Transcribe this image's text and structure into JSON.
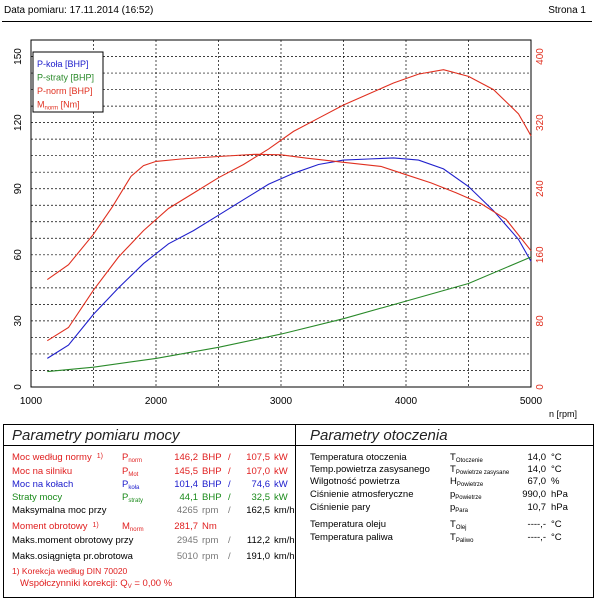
{
  "header": {
    "date_label": "Data pomiaru: 17.11.2014 (16:52)",
    "page_label": "Strona 1"
  },
  "chart_data": {
    "type": "line",
    "x_label": "n [rpm]",
    "x_ticks": [
      "1000",
      "2000",
      "3000",
      "4000",
      "5000"
    ],
    "xlim": [
      1000,
      5000
    ],
    "y_left_ticks": [
      "0",
      "30",
      "60",
      "90",
      "120",
      "150"
    ],
    "ylim_left": [
      0,
      157.5
    ],
    "y_right_ticks": [
      "0",
      "80",
      "160",
      "240",
      "320",
      "400"
    ],
    "ylim_right": [
      0,
      420
    ],
    "grid": true,
    "legend_position": "top-left",
    "legend": [
      {
        "text": "P-koła [BHP]",
        "color": "#2020cc"
      },
      {
        "text": "P-straty [BHP]",
        "color": "#2a8a2a"
      },
      {
        "text": "P-norm [BHP]",
        "color": "#e03020"
      },
      {
        "text": "M",
        "sub": "norm",
        "tail": " [Nm]",
        "color": "#e03020"
      }
    ],
    "series": [
      {
        "name": "P-koła [BHP]",
        "axis": "left",
        "color": "#2020cc",
        "x": [
          1130,
          1300,
          1500,
          1700,
          1900,
          2100,
          2300,
          2500,
          2700,
          2900,
          3100,
          3300,
          3500,
          3700,
          3900,
          4100,
          4300,
          4500,
          4700,
          4900,
          5000
        ],
        "y": [
          13,
          19,
          33,
          45,
          56,
          65,
          71,
          78,
          85,
          92,
          97,
          101,
          103,
          103.5,
          104,
          103,
          99,
          91,
          80,
          67,
          57
        ]
      },
      {
        "name": "P-straty [BHP]",
        "axis": "left",
        "color": "#2a8a2a",
        "x": [
          1130,
          1500,
          2000,
          2500,
          3000,
          3500,
          4000,
          4500,
          5000
        ],
        "y": [
          7,
          9,
          13,
          18,
          24,
          31,
          39,
          47,
          59
        ]
      },
      {
        "name": "P-norm [BHP]",
        "axis": "left",
        "color": "#e03020",
        "x": [
          1130,
          1300,
          1500,
          1700,
          1900,
          2100,
          2300,
          2500,
          2700,
          2900,
          3100,
          3300,
          3500,
          3700,
          3900,
          4100,
          4300,
          4500,
          4700,
          4900,
          5000
        ],
        "y": [
          21,
          27,
          44,
          59,
          71,
          81,
          88,
          95,
          101,
          108,
          116,
          122,
          128,
          133,
          138,
          142,
          144,
          141,
          135,
          124,
          114
        ]
      },
      {
        "name": "M",
        "axis": "right",
        "color": "#e03020",
        "x": [
          1130,
          1300,
          1500,
          1650,
          1800,
          1900,
          2000,
          2200,
          2500,
          2800,
          3000,
          3200,
          3500,
          3800,
          4000,
          4200,
          4400,
          4600,
          4800,
          5000
        ],
        "y": [
          130,
          148,
          185,
          218,
          255,
          268,
          273,
          276,
          279,
          281.7,
          281,
          277,
          272,
          267,
          257,
          247,
          235,
          222,
          203,
          165
        ]
      }
    ]
  },
  "left_table": {
    "title": "Parametry pomiaru mocy",
    "rows": [
      {
        "label": "Moc według normy",
        "note": "1)",
        "sym": "P",
        "sub": "norm",
        "v1": "146,2",
        "u1": "BHP",
        "sep": "/",
        "v2": "107,5",
        "u2": "kW",
        "cls": "red"
      },
      {
        "label": "Moc na silniku",
        "note": "",
        "sym": "P",
        "sub": "Mot",
        "v1": "145,5",
        "u1": "BHP",
        "sep": "/",
        "v2": "107,0",
        "u2": "kW",
        "cls": "red"
      },
      {
        "label": "Moc na kołach",
        "note": "",
        "sym": "P",
        "sub": "koła",
        "v1": "101,4",
        "u1": "BHP",
        "sep": "/",
        "v2": "74,6",
        "u2": "kW",
        "cls": "blue"
      },
      {
        "label": "Straty mocy",
        "note": "",
        "sym": "P",
        "sub": "straty",
        "v1": "44,1",
        "u1": "BHP",
        "sep": "/",
        "v2": "32,5",
        "u2": "kW",
        "cls": "green"
      },
      {
        "label": "Maksymalna moc przy",
        "note": "",
        "sym": "",
        "sub": "",
        "v1": "4265",
        "u1": "rpm",
        "sep": "/",
        "v2": "162,5",
        "u2": "km/h",
        "cls": ""
      },
      {
        "label": "Moment obrotowy",
        "note": "1)",
        "sym": "M",
        "sub": "norm",
        "v1": "281,7",
        "u1": "Nm",
        "sep": "",
        "v2": "",
        "u2": "",
        "cls": "red"
      },
      {
        "label": "Maks.moment obrotowy przy",
        "note": "",
        "sym": "",
        "sub": "",
        "v1": "2945",
        "u1": "rpm",
        "sep": "/",
        "v2": "112,2",
        "u2": "km/h",
        "cls": ""
      },
      {
        "label": "Maks.osiągnięta pr.obrotowa",
        "note": "",
        "sym": "",
        "sub": "",
        "v1": "5010",
        "u1": "rpm",
        "sep": "/",
        "v2": "191,0",
        "u2": "km/h",
        "cls": ""
      }
    ],
    "footnote_1": "1) Korekcja według DIN 70020",
    "footnote_2_label": "Współczynniki korekcji: Q",
    "footnote_2_sub": "V",
    "footnote_2_value": " =   0,00 %"
  },
  "right_table": {
    "title": "Parametry otoczenia",
    "rows": [
      {
        "label": "Temperatura otoczenia",
        "sym": "T",
        "sub": "Otoczenie",
        "value": "14,0",
        "unit": "°C"
      },
      {
        "label": "Temp.powietrza zasysanego",
        "sym": "T",
        "sub": "Powietrze zasysane",
        "value": "14,0",
        "unit": "°C"
      },
      {
        "label": "Wilgotność powietrza",
        "sym": "H",
        "sub": "Powietrze",
        "value": "67,0",
        "unit": "%"
      },
      {
        "label": "Ciśnienie atmosferyczne",
        "sym": "p",
        "sub": "Powietrze",
        "value": "990,0",
        "unit": "hPa"
      },
      {
        "label": "Ciśnienie pary",
        "sym": "p",
        "sub": "Para",
        "value": "10,7",
        "unit": "hPa"
      },
      {
        "label": "Temperatura oleju",
        "sym": "T",
        "sub": "Olej",
        "value": "----,-",
        "unit": "°C"
      },
      {
        "label": "Temperatura paliwa",
        "sym": "T",
        "sub": "Paliwo",
        "value": "----,-",
        "unit": "°C"
      }
    ]
  }
}
